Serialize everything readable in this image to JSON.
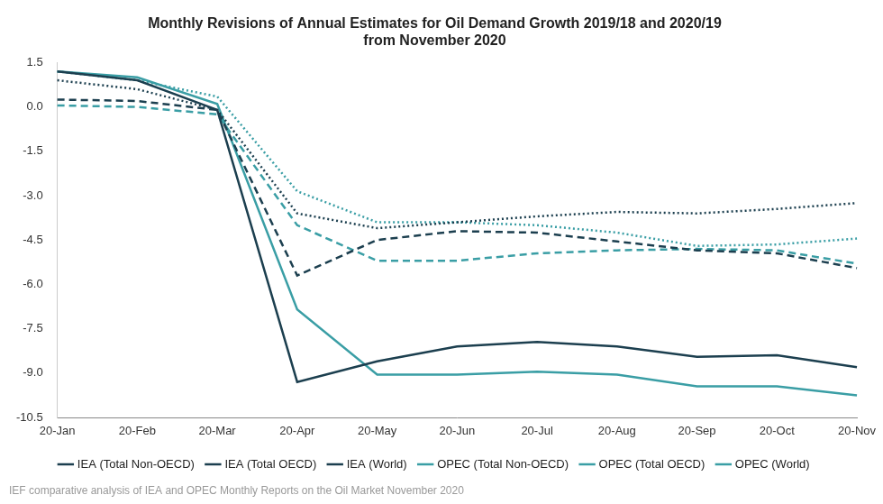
{
  "chart_data": {
    "type": "line",
    "title": [
      "Monthly Revisions of Annual Estimates for Oil Demand Growth 2019/18 and 2020/19",
      "from November 2020"
    ],
    "source": "IEF comparative analysis of IEA and OPEC Monthly Reports on the Oil Market November 2020",
    "categories": [
      "20-Jan",
      "20-Feb",
      "20-Mar",
      "20-Apr",
      "20-May",
      "20-Jun",
      "20-Jul",
      "20-Aug",
      "20-Sep",
      "20-Oct",
      "20-Nov"
    ],
    "series": [
      {
        "name": "IEA (Total Non-OECD)",
        "color": "#1c3f4f",
        "line_style": "dotted",
        "values": [
          0.9,
          0.6,
          -0.1,
          -3.6,
          -4.1,
          -3.9,
          -3.7,
          -3.55,
          -3.6,
          -3.45,
          -3.25
        ]
      },
      {
        "name": "IEA (Total OECD)",
        "color": "#1c3f4f",
        "line_style": "dashed",
        "values": [
          0.25,
          0.2,
          -0.1,
          -5.7,
          -4.5,
          -4.2,
          -4.25,
          -4.55,
          -4.85,
          -4.95,
          -5.45
        ]
      },
      {
        "name": "IEA (World)",
        "color": "#1c3f4f",
        "line_style": "solid",
        "values": [
          1.2,
          0.9,
          -0.1,
          -9.3,
          -8.6,
          -8.1,
          -7.95,
          -8.1,
          -8.45,
          -8.4,
          -8.8
        ]
      },
      {
        "name": "OPEC (Total Non-OECD)",
        "color": "#3a9ea5",
        "line_style": "dotted",
        "values": [
          1.2,
          0.9,
          0.35,
          -2.85,
          -3.9,
          -3.9,
          -4.0,
          -4.25,
          -4.7,
          -4.65,
          -4.45
        ]
      },
      {
        "name": "OPEC (Total OECD)",
        "color": "#3a9ea5",
        "line_style": "dashed",
        "values": [
          0.05,
          0.0,
          -0.25,
          -4.0,
          -5.2,
          -5.2,
          -4.95,
          -4.85,
          -4.8,
          -4.85,
          -5.3
        ]
      },
      {
        "name": "OPEC (World)",
        "color": "#3a9ea5",
        "line_style": "solid",
        "values": [
          1.2,
          1.0,
          0.1,
          -6.85,
          -9.05,
          -9.05,
          -8.95,
          -9.05,
          -9.45,
          -9.45,
          -9.75
        ]
      }
    ],
    "ylim": [
      -10.5,
      1.5
    ],
    "yticks": [
      1.5,
      {
        "value": 0,
        "label": "0.0"
      },
      -1.5,
      {
        "value": -3,
        "label": "-3.0"
      },
      -4.5,
      {
        "value": -6,
        "label": "-6.0"
      },
      -7.5,
      {
        "value": -9,
        "label": "-9.0"
      },
      -10.5
    ],
    "grid": false,
    "legend": "bottom"
  }
}
